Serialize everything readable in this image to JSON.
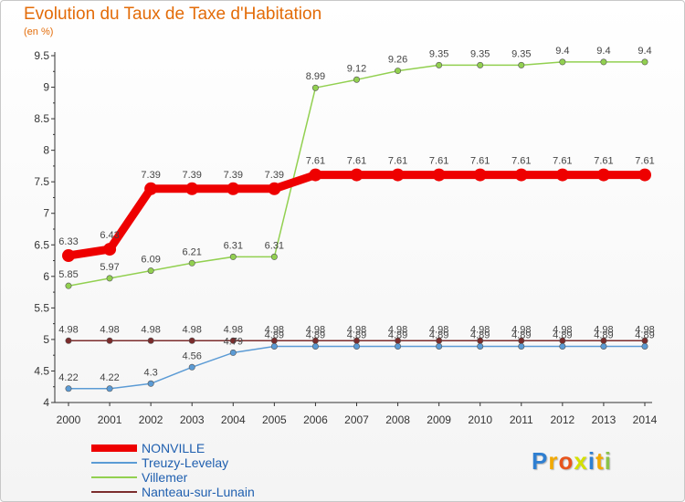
{
  "header": {
    "title": "Evolution du Taux de Taxe d'Habitation",
    "unit": "(en %)"
  },
  "logo": {
    "text": "Proxiti"
  },
  "colors": {
    "title": "#e36c09",
    "axis": "#333333",
    "legend_text": "#1f5faf"
  },
  "chart_data": {
    "type": "line",
    "title": "Evolution du Taux de Taxe d'Habitation",
    "subtitle": "(en %)",
    "xlabel": "",
    "ylabel": "",
    "x": [
      "2000",
      "2001",
      "2002",
      "2003",
      "2004",
      "2005",
      "2006",
      "2007",
      "2008",
      "2009",
      "2010",
      "2011",
      "2012",
      "2013",
      "2014"
    ],
    "ylim": [
      4,
      9.5
    ],
    "yticks": [
      "4",
      "4.5",
      "5",
      "5.5",
      "6",
      "6.5",
      "7",
      "7.5",
      "8",
      "8.5",
      "9",
      "9.5"
    ],
    "grid": false,
    "legend_position": "bottom-left",
    "series": [
      {
        "name": "NONVILLE",
        "color": "#ee0000",
        "width": 9,
        "values": [
          6.33,
          6.43,
          7.39,
          7.39,
          7.39,
          7.39,
          7.61,
          7.61,
          7.61,
          7.61,
          7.61,
          7.61,
          7.61,
          7.61,
          7.61
        ],
        "labels": [
          "6.33",
          "6.43",
          "7.39",
          "7.39",
          "7.39",
          "7.39",
          "7.61",
          "7.61",
          "7.61",
          "7.61",
          "7.61",
          "7.61",
          "7.61",
          "7.61",
          "7.61"
        ]
      },
      {
        "name": "Treuzy-Levelay",
        "color": "#5b9bd5",
        "width": 1.5,
        "values": [
          4.22,
          4.22,
          4.3,
          4.56,
          4.79,
          4.89,
          4.89,
          4.89,
          4.89,
          4.89,
          4.89,
          4.89,
          4.89,
          4.89,
          4.89
        ],
        "labels": [
          "4.22",
          "4.22",
          "4.3",
          "4.56",
          "4.79",
          "4.89",
          "4.89",
          "4.89",
          "4.89",
          "4.89",
          "4.89",
          "4.89",
          "4.89",
          "4.89",
          "4.89"
        ]
      },
      {
        "name": "Villemer",
        "color": "#92d050",
        "width": 1.5,
        "values": [
          5.85,
          5.97,
          6.09,
          6.21,
          6.31,
          6.31,
          8.99,
          9.12,
          9.26,
          9.35,
          9.35,
          9.35,
          9.4,
          9.4,
          9.4
        ],
        "labels": [
          "5.85",
          "5.97",
          "6.09",
          "6.21",
          "6.31",
          "6.31",
          "8.99",
          "9.12",
          "9.26",
          "9.35",
          "9.35",
          "9.35",
          "9.4",
          "9.4",
          "9.4"
        ]
      },
      {
        "name": "Nanteau-sur-Lunain",
        "color": "#7b2c2c",
        "width": 1.5,
        "values": [
          4.98,
          4.98,
          4.98,
          4.98,
          4.98,
          4.98,
          4.98,
          4.98,
          4.98,
          4.98,
          4.98,
          4.98,
          4.98,
          4.98,
          4.98
        ],
        "labels": [
          "4.98",
          "4.98",
          "4.98",
          "4.98",
          "4.98",
          "4.98",
          "4.98",
          "4.98",
          "4.98",
          "4.98",
          "4.98",
          "4.98",
          "4.98",
          "4.98",
          "4.98"
        ]
      }
    ]
  }
}
